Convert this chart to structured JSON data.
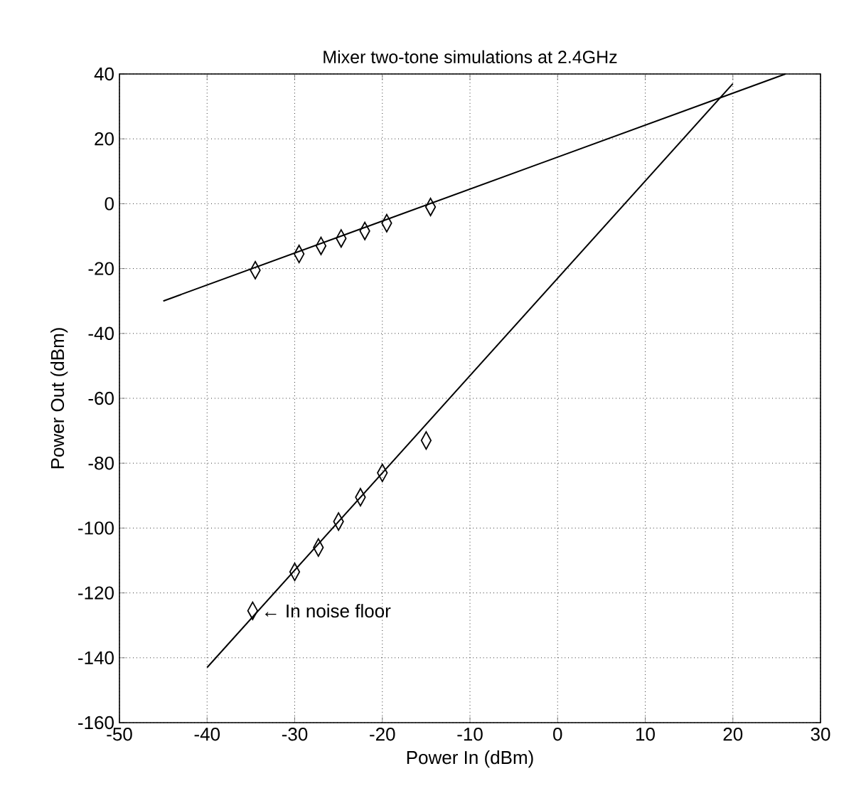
{
  "chart_data": {
    "type": "scatter",
    "title": "Mixer two-tone simulations at 2.4GHz",
    "xlabel": "Power In (dBm)",
    "ylabel": "Power Out (dBm)",
    "xlim": [
      -50,
      30
    ],
    "ylim": [
      -160,
      40
    ],
    "xticks": [
      -50,
      -40,
      -30,
      -20,
      -10,
      0,
      10,
      20,
      30
    ],
    "yticks": [
      -160,
      -140,
      -120,
      -100,
      -80,
      -60,
      -40,
      -20,
      0,
      20,
      40
    ],
    "grid": true,
    "series": [
      {
        "marker": "diamond",
        "color": "#000000",
        "x": [
          -34.5,
          -29.5,
          -27,
          -24.7,
          -22,
          -19.5,
          -14.5
        ],
        "values": [
          -20.5,
          -15.5,
          -13,
          -10.7,
          -8.4,
          -6,
          -1
        ]
      },
      {
        "marker": "diamond",
        "color": "#000000",
        "x": [
          -34.8,
          -30,
          -27.3,
          -25,
          -22.5,
          -20,
          -15
        ],
        "values": [
          -125.5,
          -113.5,
          -106,
          -98,
          -90.5,
          -83,
          -73
        ]
      },
      {
        "type": "line",
        "line_style": "solid",
        "marker": "none",
        "color": "#000000",
        "x": [
          -45,
          26
        ],
        "values": [
          -30,
          40
        ]
      },
      {
        "type": "line",
        "line_style": "solid",
        "marker": "none",
        "color": "#000000",
        "x": [
          -40,
          20
        ],
        "values": [
          -143,
          37
        ]
      }
    ],
    "annotations": [
      {
        "text": "← In noise floor",
        "x": -34.8,
        "y": -125.5
      }
    ]
  }
}
